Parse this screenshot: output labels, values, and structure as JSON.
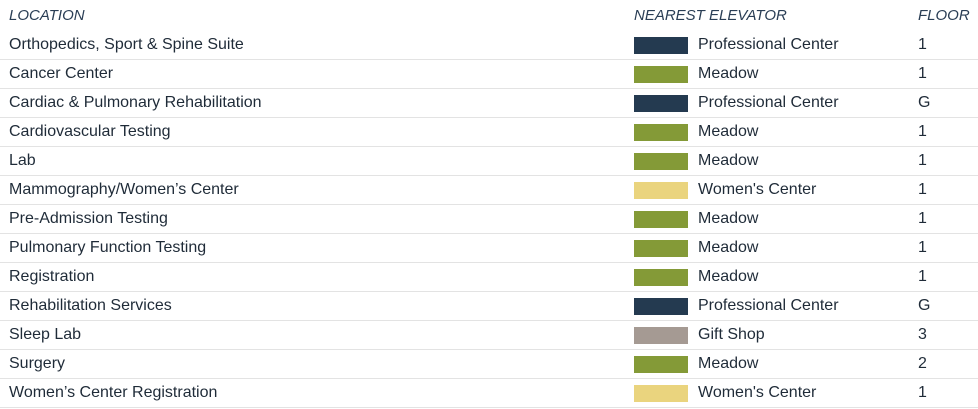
{
  "table": {
    "headers": [
      "LOCATION",
      "NEAREST ELEVATOR",
      "FLOOR"
    ],
    "elevator_colors": {
      "Professional Center": "#243a50",
      "Meadow": "#849a37",
      "Women's Center": "#ead47e",
      "Gift Shop": "#a59a93"
    },
    "rows": [
      [
        "Orthopedics, Sport & Spine Suite",
        "Professional Center",
        "1"
      ],
      [
        "Cancer Center",
        "Meadow",
        "1"
      ],
      [
        "Cardiac & Pulmonary Rehabilitation",
        "Professional Center",
        "G"
      ],
      [
        "Cardiovascular Testing",
        "Meadow",
        "1"
      ],
      [
        "Lab",
        "Meadow",
        "1"
      ],
      [
        "Mammography/Women’s Center",
        "Women's Center",
        "1"
      ],
      [
        "Pre-Admission Testing",
        "Meadow",
        "1"
      ],
      [
        "Pulmonary Function Testing",
        "Meadow",
        "1"
      ],
      [
        "Registration",
        "Meadow",
        "1"
      ],
      [
        "Rehabilitation Services",
        "Professional Center",
        "G"
      ],
      [
        "Sleep Lab",
        "Gift Shop",
        "3"
      ],
      [
        "Surgery",
        "Meadow",
        "2"
      ],
      [
        "Women’s Center Registration",
        "Women's Center",
        "1"
      ]
    ]
  }
}
